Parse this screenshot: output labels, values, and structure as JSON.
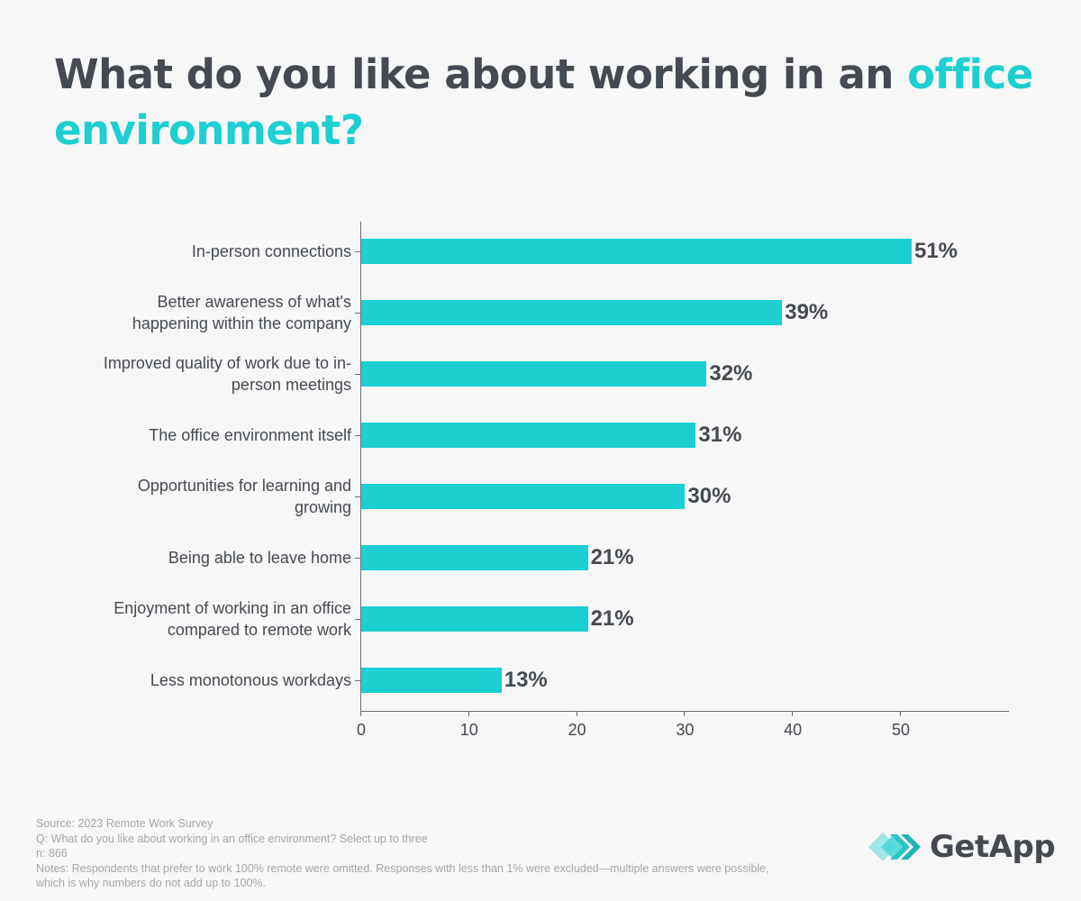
{
  "title": {
    "prefix": "What do you like about working in an ",
    "accent": "office environment?"
  },
  "colors": {
    "bar": "#1ccfd1",
    "accent": "#1ccfd1",
    "text": "#454a52",
    "footer_text": "#a3a6aa",
    "background": "#f7f7f7"
  },
  "chart_data": {
    "type": "bar",
    "orientation": "horizontal",
    "title": "What do you like about working in an office environment?",
    "xlabel": "",
    "ylabel": "",
    "categories": [
      "In-person connections",
      "Better awareness of what's happening within the company",
      "Improved quality of work due to in-person meetings",
      "The office environment itself",
      "Opportunities for learning and growing",
      "Being able to leave home",
      "Enjoyment of working in an office compared to remote work",
      "Less monotonous workdays"
    ],
    "values": [
      51,
      39,
      32,
      31,
      30,
      21,
      21,
      13
    ],
    "value_labels": [
      "51%",
      "39%",
      "32%",
      "31%",
      "30%",
      "21%",
      "21%",
      "13%"
    ],
    "xlim": [
      0,
      60
    ],
    "x_ticks": [
      0,
      10,
      20,
      30,
      40,
      50
    ],
    "grid": false,
    "legend": null
  },
  "footer": {
    "source": "Source: 2023 Remote Work Survey",
    "question": "Q: What do you like about working in an office environment? Select up to three",
    "n": "n: 866",
    "notes": "Notes: Respondents that prefer to work 100% remote were omitted. Responses with less than 1% were excluded—multiple answers were possible, which is why numbers do not add up to 100%."
  },
  "logo": {
    "icon": "getapp-chevrons-icon",
    "text": "GetApp"
  }
}
